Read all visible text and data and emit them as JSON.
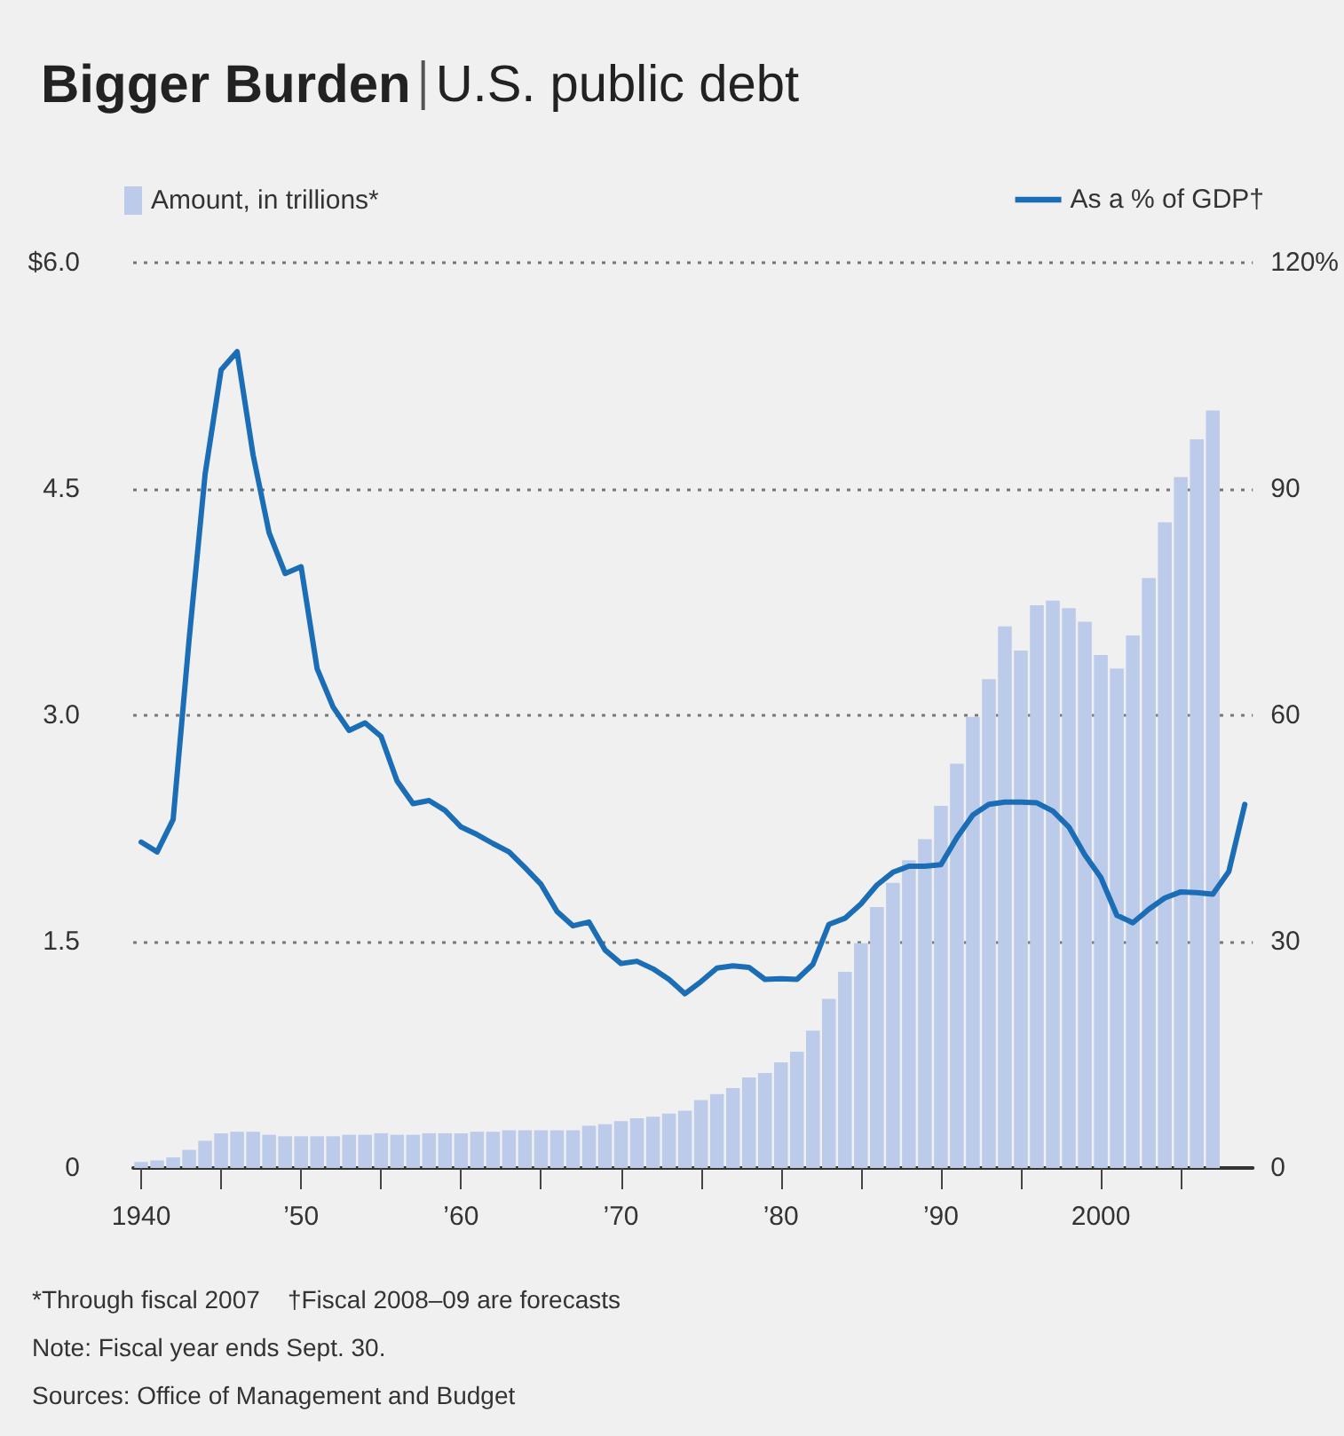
{
  "chart_data": {
    "type": "bar",
    "title": "Bigger Burden",
    "subtitle": "U.S. public debt",
    "series": [
      {
        "name": "Amount, in trillions*",
        "axis": "y",
        "color": "#bccbea",
        "x": [
          1940,
          1941,
          1942,
          1943,
          1944,
          1945,
          1946,
          1947,
          1948,
          1949,
          1950,
          1951,
          1952,
          1953,
          1954,
          1955,
          1956,
          1957,
          1958,
          1959,
          1960,
          1961,
          1962,
          1963,
          1964,
          1965,
          1966,
          1967,
          1968,
          1969,
          1970,
          1971,
          1972,
          1973,
          1974,
          1975,
          1976,
          1977,
          1978,
          1979,
          1980,
          1981,
          1982,
          1983,
          1984,
          1985,
          1986,
          1987,
          1988,
          1989,
          1990,
          1991,
          1992,
          1993,
          1994,
          1995,
          1996,
          1997,
          1998,
          1999,
          2000,
          2001,
          2002,
          2003,
          2004,
          2005,
          2006,
          2007
        ],
        "values": [
          0.04,
          0.05,
          0.07,
          0.12,
          0.18,
          0.23,
          0.24,
          0.24,
          0.22,
          0.21,
          0.21,
          0.21,
          0.21,
          0.22,
          0.22,
          0.23,
          0.22,
          0.22,
          0.23,
          0.23,
          0.23,
          0.24,
          0.24,
          0.25,
          0.25,
          0.25,
          0.25,
          0.25,
          0.28,
          0.29,
          0.31,
          0.33,
          0.34,
          0.36,
          0.38,
          0.45,
          0.49,
          0.53,
          0.6,
          0.63,
          0.7,
          0.77,
          0.91,
          1.12,
          1.3,
          1.49,
          1.73,
          1.89,
          2.04,
          2.18,
          2.4,
          2.68,
          2.99,
          3.24,
          3.59,
          3.43,
          3.73,
          3.76,
          3.71,
          3.62,
          3.4,
          3.31,
          3.53,
          3.91,
          4.28,
          4.58,
          4.83,
          5.02
        ]
      },
      {
        "name": "As a % of GDP†",
        "type": "line",
        "axis": "y2",
        "color": "#1b6db5",
        "x": [
          1940,
          1941,
          1942,
          1943,
          1944,
          1945,
          1946,
          1947,
          1948,
          1949,
          1950,
          1951,
          1952,
          1953,
          1954,
          1955,
          1956,
          1957,
          1958,
          1959,
          1960,
          1961,
          1962,
          1963,
          1964,
          1965,
          1966,
          1967,
          1968,
          1969,
          1970,
          1971,
          1972,
          1973,
          1974,
          1975,
          1976,
          1977,
          1978,
          1979,
          1980,
          1981,
          1982,
          1983,
          1984,
          1985,
          1986,
          1987,
          1988,
          1989,
          1990,
          1991,
          1992,
          1993,
          1994,
          1995,
          1996,
          1997,
          1998,
          1999,
          2000,
          2001,
          2002,
          2003,
          2004,
          2005,
          2006,
          2007,
          2008,
          2009
        ],
        "values": [
          43.2,
          41.9,
          46.2,
          70.1,
          92.0,
          105.8,
          108.2,
          94.5,
          84.2,
          78.8,
          79.7,
          66.2,
          61.1,
          58.0,
          59.0,
          57.2,
          51.3,
          48.3,
          48.7,
          47.4,
          45.2,
          44.2,
          43.0,
          41.9,
          39.8,
          37.6,
          34.0,
          32.1,
          32.6,
          28.9,
          27.1,
          27.4,
          26.4,
          25.0,
          23.1,
          24.7,
          26.5,
          26.8,
          26.6,
          25.0,
          25.1,
          25.0,
          27.0,
          32.3,
          33.1,
          35.0,
          37.5,
          39.2,
          40.0,
          40.0,
          40.2,
          43.8,
          46.8,
          48.2,
          48.5,
          48.5,
          48.4,
          47.3,
          45.2,
          41.5,
          38.5,
          33.5,
          32.5,
          34.3,
          35.8,
          36.6,
          36.5,
          36.3,
          39.3,
          48.2
        ]
      }
    ],
    "xlim": [
      1939.5,
      2009.5
    ],
    "xticks": [
      {
        "value": 1940,
        "label": "1940"
      },
      {
        "value": 1945,
        "label": null
      },
      {
        "value": 1950,
        "label": "’50"
      },
      {
        "value": 1955,
        "label": null
      },
      {
        "value": 1960,
        "label": "’60"
      },
      {
        "value": 1965,
        "label": null
      },
      {
        "value": 1970,
        "label": "’70"
      },
      {
        "value": 1975,
        "label": null
      },
      {
        "value": 1980,
        "label": "’80"
      },
      {
        "value": 1985,
        "label": null
      },
      {
        "value": 1990,
        "label": "’90"
      },
      {
        "value": 1995,
        "label": null
      },
      {
        "value": 2000,
        "label": "2000"
      },
      {
        "value": 2005,
        "label": null
      }
    ],
    "ylim": [
      0,
      6
    ],
    "yticks": [
      {
        "value": 0,
        "label": "0"
      },
      {
        "value": 1.5,
        "label": "1.5"
      },
      {
        "value": 3,
        "label": "3.0"
      },
      {
        "value": 4.5,
        "label": "4.5"
      },
      {
        "value": 6,
        "label": "$6.0"
      }
    ],
    "y2lim": [
      0,
      120
    ],
    "y2ticks": [
      {
        "value": 0,
        "label": "0"
      },
      {
        "value": 30,
        "label": "30"
      },
      {
        "value": 60,
        "label": "60"
      },
      {
        "value": 90,
        "label": "90"
      },
      {
        "value": 120,
        "label": "120%"
      }
    ],
    "grid": "y",
    "legend": "top",
    "annotations": [
      "*Through fiscal 2007    †Fiscal 2008–09 are forecasts",
      "Note: Fiscal year ends Sept. 30.",
      "Sources: Office of Management and Budget"
    ]
  }
}
